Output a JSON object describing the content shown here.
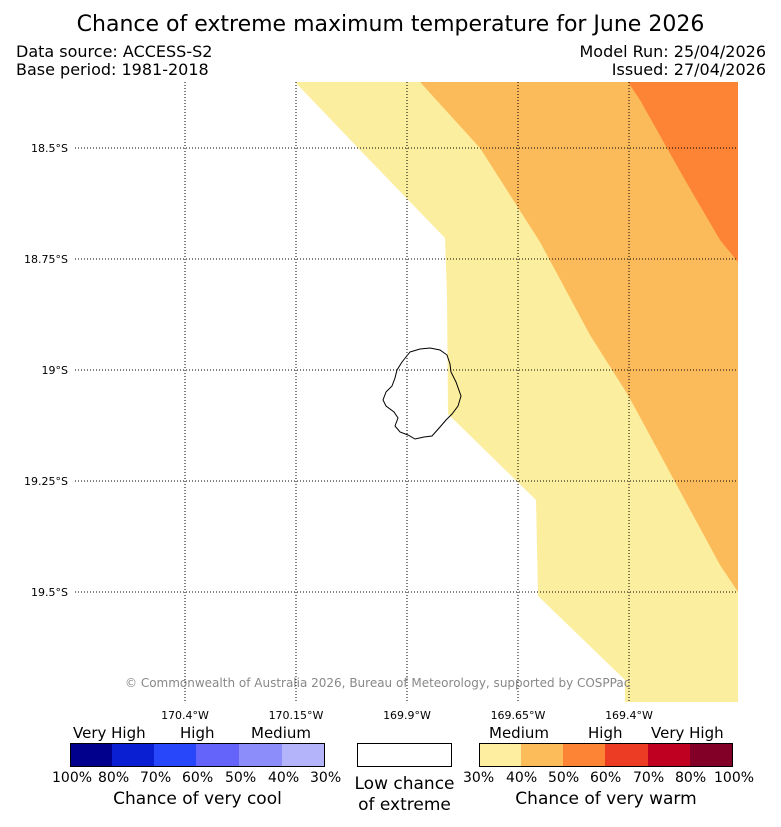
{
  "title": "Chance of extreme maximum temperature for June 2026",
  "data_source": "Data source: ACCESS-S2",
  "base_period": "Base period: 1981-2018",
  "model_run": "Model Run: 25/04/2026",
  "issued": "Issued: 27/04/2026",
  "copyright": "© Commonwealth of Australia 2026, Bureau of Meteorology, supported by COSPPac",
  "lat_labels": [
    "18.5°S",
    "18.75°S",
    "19°S",
    "19.25°S",
    "19.5°S"
  ],
  "lon_labels": [
    "170.4°W",
    "170.15°W",
    "169.9°W",
    "169.65°W",
    "169.4°W"
  ],
  "legend": {
    "cool": {
      "groups": [
        "Very High",
        "High",
        "Medium"
      ],
      "percentages": [
        "100%",
        "80%",
        "70%",
        "60%",
        "50%",
        "40%",
        "30%"
      ],
      "colors": [
        "#00008c",
        "#0a1ed2",
        "#2846fa",
        "#6464fa",
        "#8c8cfa",
        "#b4b4fa"
      ],
      "caption": "Chance of very cool"
    },
    "neutral": {
      "line1": "Low chance",
      "line2": "of extreme",
      "color": "#ffffff"
    },
    "warm": {
      "groups": [
        "Medium",
        "High",
        "Very High"
      ],
      "percentages": [
        "30%",
        "40%",
        "50%",
        "60%",
        "70%",
        "80%",
        "100%"
      ],
      "colors": [
        "#fdeea0",
        "#fcbc5a",
        "#fd8434",
        "#ec3c24",
        "#c00020",
        "#820027"
      ],
      "caption": "Chance of very warm"
    }
  }
}
